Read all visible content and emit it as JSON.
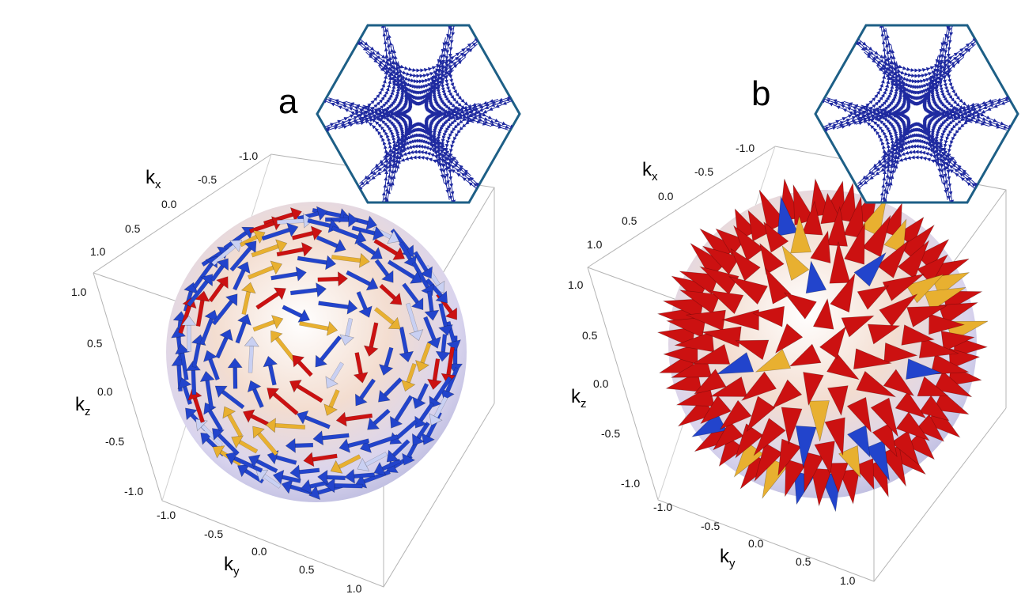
{
  "panels": [
    {
      "id": "a",
      "letter": "a",
      "field": "vortex",
      "axes": {
        "kx": {
          "label": "k",
          "sub": "x",
          "ticks": [
            "-1.0",
            "-0.5",
            "0.0",
            "0.5",
            "1.0"
          ]
        },
        "ky": {
          "label": "k",
          "sub": "y",
          "ticks": [
            "-1.0",
            "-0.5",
            "0.0",
            "0.5",
            "1.0"
          ]
        },
        "kz": {
          "label": "k",
          "sub": "z",
          "ticks": [
            "1.0",
            "0.5",
            "0.0",
            "-0.5",
            "-1.0"
          ]
        }
      },
      "inset": {
        "shape": "hexagon",
        "pattern": "saddle-streamlines"
      },
      "colors": {
        "cold": "#2244cc",
        "hot": "#cc1111",
        "mid": "#e8b030"
      }
    },
    {
      "id": "b",
      "letter": "b",
      "field": "hedgehog",
      "axes": {
        "kx": {
          "label": "k",
          "sub": "x",
          "ticks": [
            "-1.0",
            "-0.5",
            "0.0",
            "0.5",
            "1.0"
          ]
        },
        "ky": {
          "label": "k",
          "sub": "y",
          "ticks": [
            "-1.0",
            "-0.5",
            "0.0",
            "0.5",
            "1.0"
          ]
        },
        "kz": {
          "label": "k",
          "sub": "z",
          "ticks": [
            "1.0",
            "0.5",
            "0.0",
            "-0.5",
            "-1.0"
          ]
        }
      },
      "inset": {
        "shape": "hexagon",
        "pattern": "saddle-streamlines"
      },
      "colors": {
        "cold": "#2244cc",
        "hot": "#cc1111",
        "mid": "#e8b030"
      }
    }
  ]
}
